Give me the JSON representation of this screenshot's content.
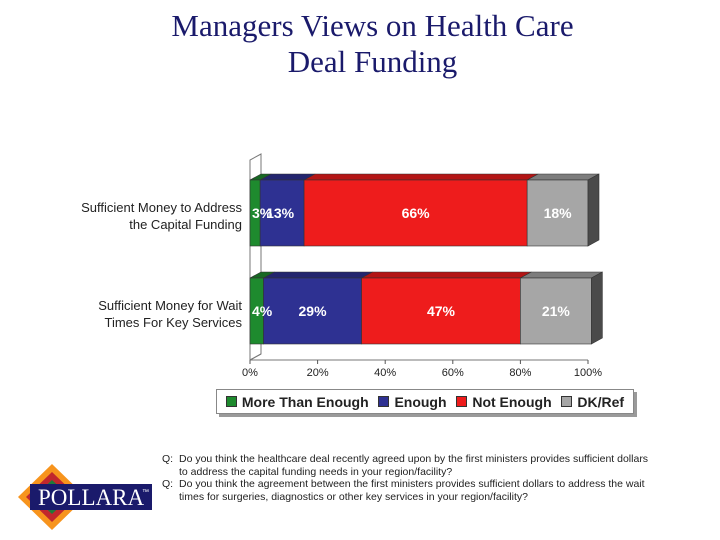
{
  "title": {
    "line1": "Managers Views on Health Care",
    "line2": "Deal Funding"
  },
  "chart_data": {
    "type": "bar",
    "orientation": "horizontal",
    "stacked": true,
    "categories": [
      [
        "Sufficient  Money to Address",
        "the Capital Funding"
      ],
      [
        "Sufficient Money for Wait",
        "Times For Key Services"
      ]
    ],
    "series": [
      {
        "name": "More Than Enough",
        "color": "#1e8a2e",
        "values": [
          3,
          4
        ],
        "labels": [
          "3%",
          "4%"
        ]
      },
      {
        "name": "Enough",
        "color": "#2e3192",
        "values": [
          13,
          29
        ],
        "labels": [
          "13%",
          "29%"
        ]
      },
      {
        "name": "Not Enough",
        "color": "#ee1c1c",
        "values": [
          66,
          47
        ],
        "labels": [
          "66%",
          "47%"
        ]
      },
      {
        "name": "DK/Ref",
        "color": "#a6a6a6",
        "values": [
          18,
          21
        ],
        "labels": [
          "18%",
          "21%"
        ]
      }
    ],
    "xlim": [
      0,
      100
    ],
    "x_ticks": [
      "0%",
      "20%",
      "40%",
      "60%",
      "80%",
      "100%"
    ],
    "legend_position": "bottom",
    "grid": false
  },
  "questions": [
    {
      "prefix": "Q:",
      "text": "Do you think the healthcare deal recently agreed upon by the first ministers provides sufficient dollars to address the capital funding needs in your region/facility?"
    },
    {
      "prefix": "Q:",
      "text": "Do you think the agreement between the first ministers provides sufficient dollars to address the wait times for surgeries, diagnostics or other key services in your region/facility?"
    }
  ],
  "logo": {
    "text": "POLLARA",
    "mark": "™"
  }
}
